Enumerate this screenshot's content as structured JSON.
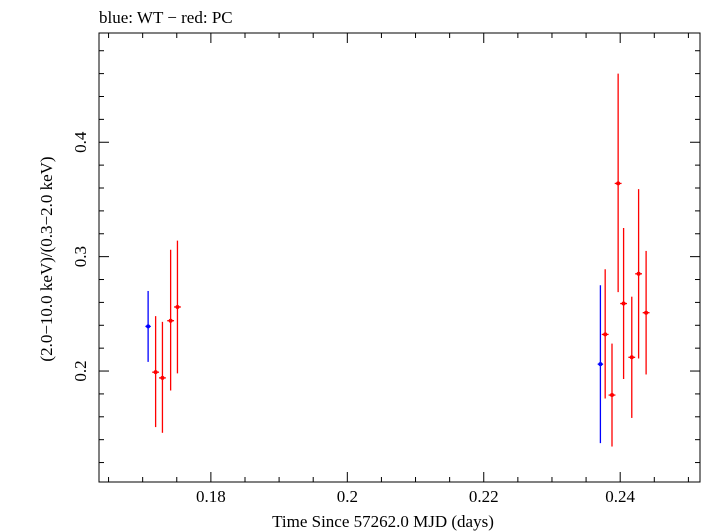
{
  "chart_data": {
    "type": "scatter",
    "title": "blue: WT − red: PC",
    "xlabel": "Time Since 57262.0 MJD (days)",
    "ylabel": "(2.0−10.0 keV)/(0.3−2.0 keV)",
    "xlim": [
      0.1636,
      0.2517
    ],
    "ylim": [
      0.103,
      0.4955
    ],
    "x_ticks": [
      "0.18",
      "0.2",
      "0.22",
      "0.24"
    ],
    "y_ticks": [
      "0.2",
      "0.3",
      "0.4"
    ],
    "grid": false,
    "series": [
      {
        "color": "#0000ff",
        "points": [
          {
            "x": 0.1708,
            "y": 0.239,
            "ylo": 0.208,
            "yhi": 0.27,
            "xerr": 0.0004
          },
          {
            "x": 0.2371,
            "y": 0.206,
            "ylo": 0.137,
            "yhi": 0.275,
            "xerr": 0.0004
          }
        ]
      },
      {
        "color": "#ff0000",
        "points": [
          {
            "x": 0.1719,
            "y": 0.199,
            "ylo": 0.151,
            "yhi": 0.248,
            "xerr": 0.0005
          },
          {
            "x": 0.1729,
            "y": 0.194,
            "ylo": 0.146,
            "yhi": 0.243,
            "xerr": 0.0005
          },
          {
            "x": 0.1741,
            "y": 0.244,
            "ylo": 0.183,
            "yhi": 0.306,
            "xerr": 0.0005
          },
          {
            "x": 0.1751,
            "y": 0.256,
            "ylo": 0.198,
            "yhi": 0.314,
            "xerr": 0.0005
          },
          {
            "x": 0.2378,
            "y": 0.232,
            "ylo": 0.176,
            "yhi": 0.289,
            "xerr": 0.0005
          },
          {
            "x": 0.2388,
            "y": 0.179,
            "ylo": 0.134,
            "yhi": 0.224,
            "xerr": 0.0005
          },
          {
            "x": 0.2397,
            "y": 0.364,
            "ylo": 0.269,
            "yhi": 0.46,
            "xerr": 0.0005
          },
          {
            "x": 0.2405,
            "y": 0.259,
            "ylo": 0.193,
            "yhi": 0.325,
            "xerr": 0.0005
          },
          {
            "x": 0.2417,
            "y": 0.212,
            "ylo": 0.159,
            "yhi": 0.265,
            "xerr": 0.0005
          },
          {
            "x": 0.2427,
            "y": 0.285,
            "ylo": 0.211,
            "yhi": 0.359,
            "xerr": 0.0005
          },
          {
            "x": 0.2438,
            "y": 0.251,
            "ylo": 0.197,
            "yhi": 0.305,
            "xerr": 0.0005
          }
        ]
      }
    ]
  }
}
